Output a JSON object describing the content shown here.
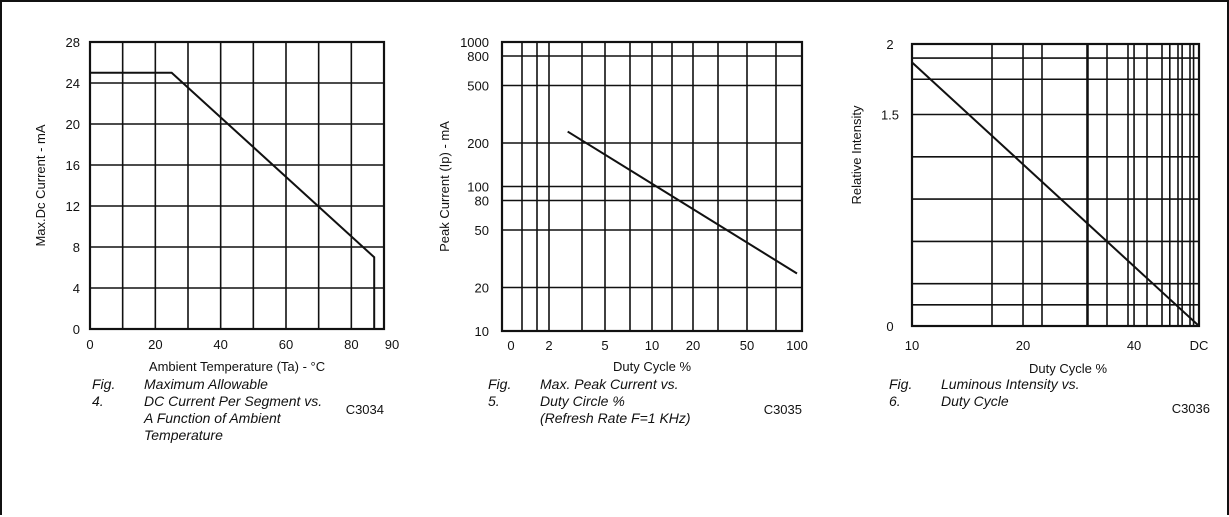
{
  "chart_data": [
    {
      "type": "line",
      "xlabel": "Ambient Temperature (Ta) - °C",
      "ylabel": "Max.Dc Current - mA",
      "xlim": [
        0,
        90
      ],
      "ylim": [
        0,
        28
      ],
      "x_ticks": [
        "0",
        "20",
        "40",
        "60",
        "80",
        "90"
      ],
      "y_ticks": [
        "0",
        "4",
        "8",
        "12",
        "16",
        "20",
        "24",
        "28"
      ],
      "x_grid": [
        0,
        10,
        20,
        30,
        40,
        50,
        60,
        70,
        80,
        90
      ],
      "y_grid": [
        0,
        4,
        8,
        12,
        16,
        20,
        24,
        28
      ],
      "series": [
        {
          "x": [
            0,
            25,
            87,
            87
          ],
          "y": [
            25,
            25,
            7,
            0
          ]
        }
      ],
      "code": "C3034",
      "figure_number": "Fig. 4.",
      "caption_lines": [
        "Maximum Allowable",
        "DC Current Per Segment vs.",
        "A Function of Ambient",
        "Temperature"
      ],
      "grid": true
    },
    {
      "type": "line",
      "xlabel": "Duty Cycle %",
      "ylabel": "Peak Current (Ip) - mA",
      "xlim": [
        0,
        100
      ],
      "ylim": [
        10,
        1000
      ],
      "y_scale": "log",
      "x_ticks": [
        "0",
        "2",
        "5",
        "10",
        "20",
        "50",
        "100"
      ],
      "y_ticks": [
        "10",
        "20",
        "50",
        "80",
        "100",
        "200",
        "500",
        "800",
        "1000"
      ],
      "series": [
        {
          "x": [
            3,
            100
          ],
          "y": [
            240,
            25
          ]
        }
      ],
      "code": "C3035",
      "figure_number": "Fig. 5.",
      "caption_lines": [
        "Max. Peak Current vs.",
        "Duty Circle %",
        "(Refresh Rate F=1 KHz)"
      ],
      "grid": true
    },
    {
      "type": "line",
      "xlabel": "Duty Cycle %",
      "ylabel": "Relative Intensity",
      "x_scale": "log",
      "xlim": [
        10,
        60
      ],
      "ylim": [
        0,
        2
      ],
      "x_ticks": [
        "10",
        "20",
        "40",
        "DC"
      ],
      "y_ticks": [
        "0",
        "1.5",
        "2"
      ],
      "series": [
        {
          "x": [
            10,
            60
          ],
          "y": [
            1.87,
            0
          ]
        }
      ],
      "code": "C3036",
      "figure_number": "Fig. 6.",
      "caption_lines": [
        "Luminous Intensity vs.",
        "Duty Cycle"
      ],
      "grid": true
    }
  ],
  "style": {
    "ink": "#111111",
    "paper": "#ffffff"
  }
}
